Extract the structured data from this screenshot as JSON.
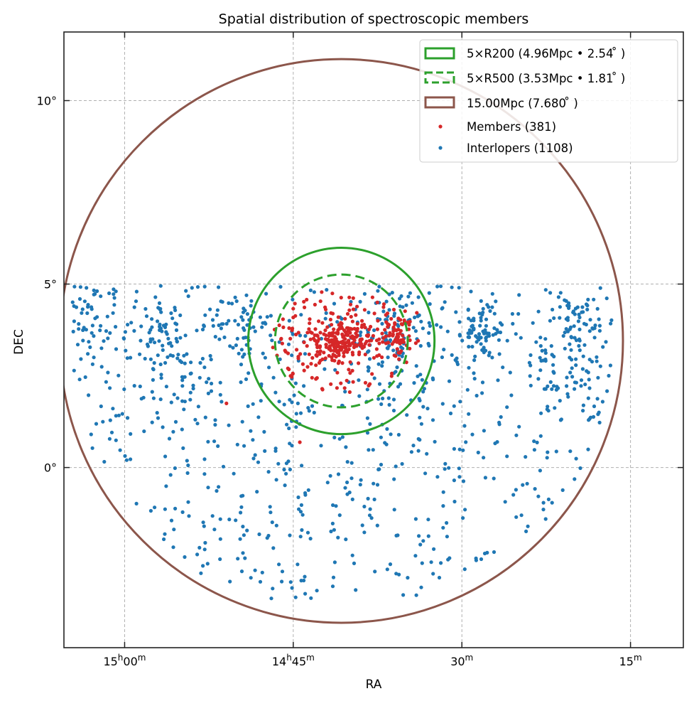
{
  "chart_data": {
    "type": "scatter",
    "title": "Spatial distribution of spectroscopic members",
    "xlabel": "RA",
    "ylabel": "DEC",
    "grid": true,
    "legend_position": "top-right",
    "x_ticks": [
      {
        "ra_min": 900,
        "main": "15",
        "unit1": "h",
        "main2": "00",
        "unit2": "m"
      },
      {
        "ra_min": 885,
        "main": "14",
        "unit1": "h",
        "main2": "45",
        "unit2": "m"
      },
      {
        "ra_min": 870,
        "main": "30",
        "unit1": "m",
        "main2": "",
        "unit2": ""
      },
      {
        "ra_min": 855,
        "main": "15",
        "unit1": "m",
        "main2": "",
        "unit2": ""
      }
    ],
    "y_ticks": [
      {
        "dec": 0,
        "label": "0°"
      },
      {
        "dec": 5,
        "label": "5°"
      },
      {
        "dec": 10,
        "label": "10°"
      }
    ],
    "xlim_ra_min": [
      905.4,
      850.3
    ],
    "ylim_dec": [
      -4.91,
      11.87
    ],
    "center": {
      "ra_min": 880.72,
      "dec": 3.45
    },
    "circles": [
      {
        "name": "5×R200",
        "label": "5×R200 (4.96Mpc • 2.54$^\\circ$)",
        "display": "5×R200 (4.96Mpc • 2.54 ̊ )",
        "radius_deg": 2.54,
        "color": "#2ca02c",
        "style": "solid"
      },
      {
        "name": "5×R500",
        "label": "5×R500 (3.53Mpc • 1.81$^\\circ$)",
        "display": "5×R500 (3.53Mpc • 1.81 ̊ )",
        "radius_deg": 1.81,
        "color": "#2ca02c",
        "style": "dashed"
      },
      {
        "name": "15Mpc",
        "label": "15.00Mpc (7.680$^\\circ$)",
        "display": "15.00Mpc (7.680 ̊ )",
        "radius_deg": 7.68,
        "color": "#8c564b",
        "style": "solid"
      }
    ],
    "series": [
      {
        "name": "Members",
        "legend": "Members (381)",
        "count": 381,
        "color": "#d62728",
        "distribution": {
          "core_sigma_deg": 0.35,
          "core_frac": 0.45,
          "halo_radius_deg": 1.9,
          "sub_clump": {
            "dra_deg": 1.55,
            "ddec_deg": 0.2,
            "sigma_deg": 0.3,
            "frac": 0.15
          }
        }
      },
      {
        "name": "Interlopers",
        "legend": "Interlopers (1108)",
        "count": 1108,
        "color": "#1f77b4",
        "distribution": {
          "dec_max": 4.95,
          "dec_min": -3.6,
          "within_radius_deg": 7.68
        }
      }
    ]
  }
}
